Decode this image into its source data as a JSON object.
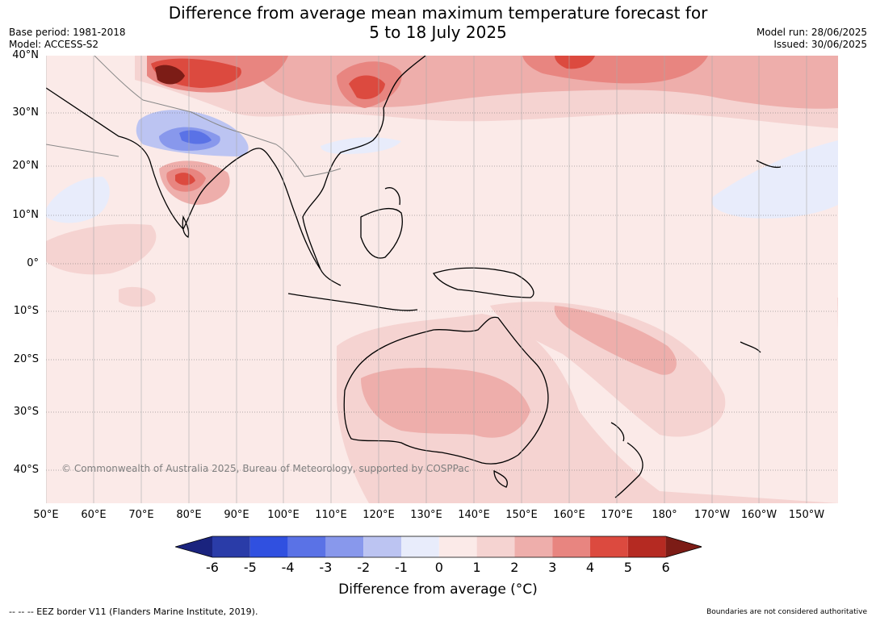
{
  "title_line1": "Difference from average mean maximum temperature forecast for",
  "title_line2": "5 to 18 July 2025",
  "meta_left": {
    "base_period": "Base period: 1981-2018",
    "model": "Model: ACCESS-S2"
  },
  "meta_right": {
    "model_run": "Model run: 28/06/2025",
    "issued": "Issued: 30/06/2025"
  },
  "lat_labels": [
    "40°N",
    "30°N",
    "20°N",
    "10°N",
    "0°",
    "10°S",
    "20°S",
    "30°S",
    "40°S"
  ],
  "lon_labels": [
    "50°E",
    "60°E",
    "70°E",
    "80°E",
    "90°E",
    "100°E",
    "110°E",
    "120°E",
    "130°E",
    "140°E",
    "150°E",
    "160°E",
    "170°E",
    "180°",
    "170°W",
    "160°W",
    "150°W"
  ],
  "copyright": "© Commonwealth of Australia 2025, Bureau of Meteorology, supported by COSPPac",
  "colorbar": {
    "ticks": [
      "-6",
      "-5",
      "-4",
      "-3",
      "-2",
      "-1",
      "0",
      "1",
      "2",
      "3",
      "4",
      "5",
      "6"
    ],
    "label": "Difference from average (°C)",
    "colors": {
      "below_min": "#1a237e",
      "bins": [
        "#2a3ca8",
        "#3050e0",
        "#5a72e6",
        "#8898ec",
        "#bcc4f2",
        "#e8ecfb",
        "#fbeae8",
        "#f5d3d1",
        "#eeaeab",
        "#e88580",
        "#dc4a3f",
        "#b52a22"
      ],
      "above_max": "#7c1c16"
    }
  },
  "footer_left": "-- -- -- EEZ border V11 (Flanders Marine Institute, 2019).",
  "footer_right": "Boundaries are not considered authoritative"
}
